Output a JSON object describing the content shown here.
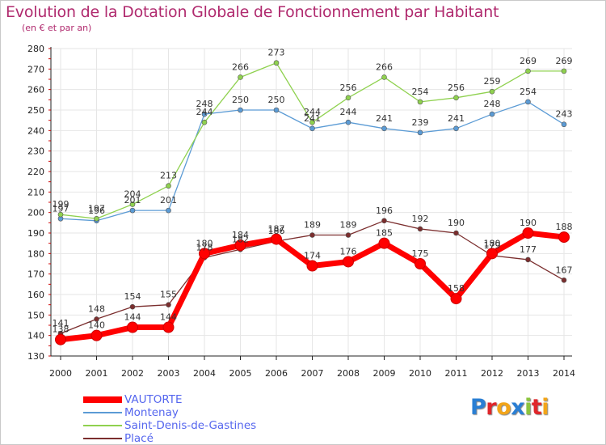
{
  "title": "Evolution de la Dotation Globale de Fonctionnement par Habitant",
  "subtitle": "(en € et par an)",
  "logo": {
    "p": "P",
    "r": "r",
    "o": "o",
    "x": "x",
    "i": "i",
    "t": "t",
    "i2": "i"
  },
  "colors": {
    "title": "#b02a6e",
    "legend_text": "#5566ee",
    "grid": "#e6e6e6",
    "axis": "#222222",
    "axis_ticks": "#cc0000"
  },
  "chart_data": {
    "type": "line",
    "x": [
      "2000",
      "2001",
      "2002",
      "2003",
      "2004",
      "2005",
      "2006",
      "2007",
      "2008",
      "2009",
      "2010",
      "2011",
      "2012",
      "2013",
      "2014"
    ],
    "ylim": [
      130,
      280
    ],
    "yticks": [
      130,
      140,
      150,
      160,
      170,
      180,
      190,
      200,
      210,
      220,
      230,
      240,
      250,
      260,
      270,
      280
    ],
    "grid": true,
    "legend_position": "bottom-left",
    "series": [
      {
        "name": "VAUTORTE",
        "color": "#ff0000",
        "values": [
          138,
          140,
          144,
          144,
          180,
          184,
          187,
          174,
          176,
          185,
          175,
          158,
          180,
          190,
          188
        ]
      },
      {
        "name": "Montenay",
        "color": "#5b9bd5",
        "values": [
          197,
          196,
          201,
          201,
          248,
          250,
          250,
          241,
          244,
          241,
          239,
          241,
          248,
          254,
          243
        ]
      },
      {
        "name": "Saint-Denis-de-Gastines",
        "color": "#8fd14f",
        "values": [
          199,
          197,
          204,
          213,
          244,
          266,
          273,
          244,
          256,
          266,
          254,
          256,
          259,
          269,
          269
        ]
      },
      {
        "name": "Placé",
        "color": "#7b2e2e",
        "values": [
          141,
          148,
          154,
          155,
          178,
          182,
          186,
          189,
          189,
          196,
          192,
          190,
          179,
          177,
          167
        ]
      }
    ]
  }
}
